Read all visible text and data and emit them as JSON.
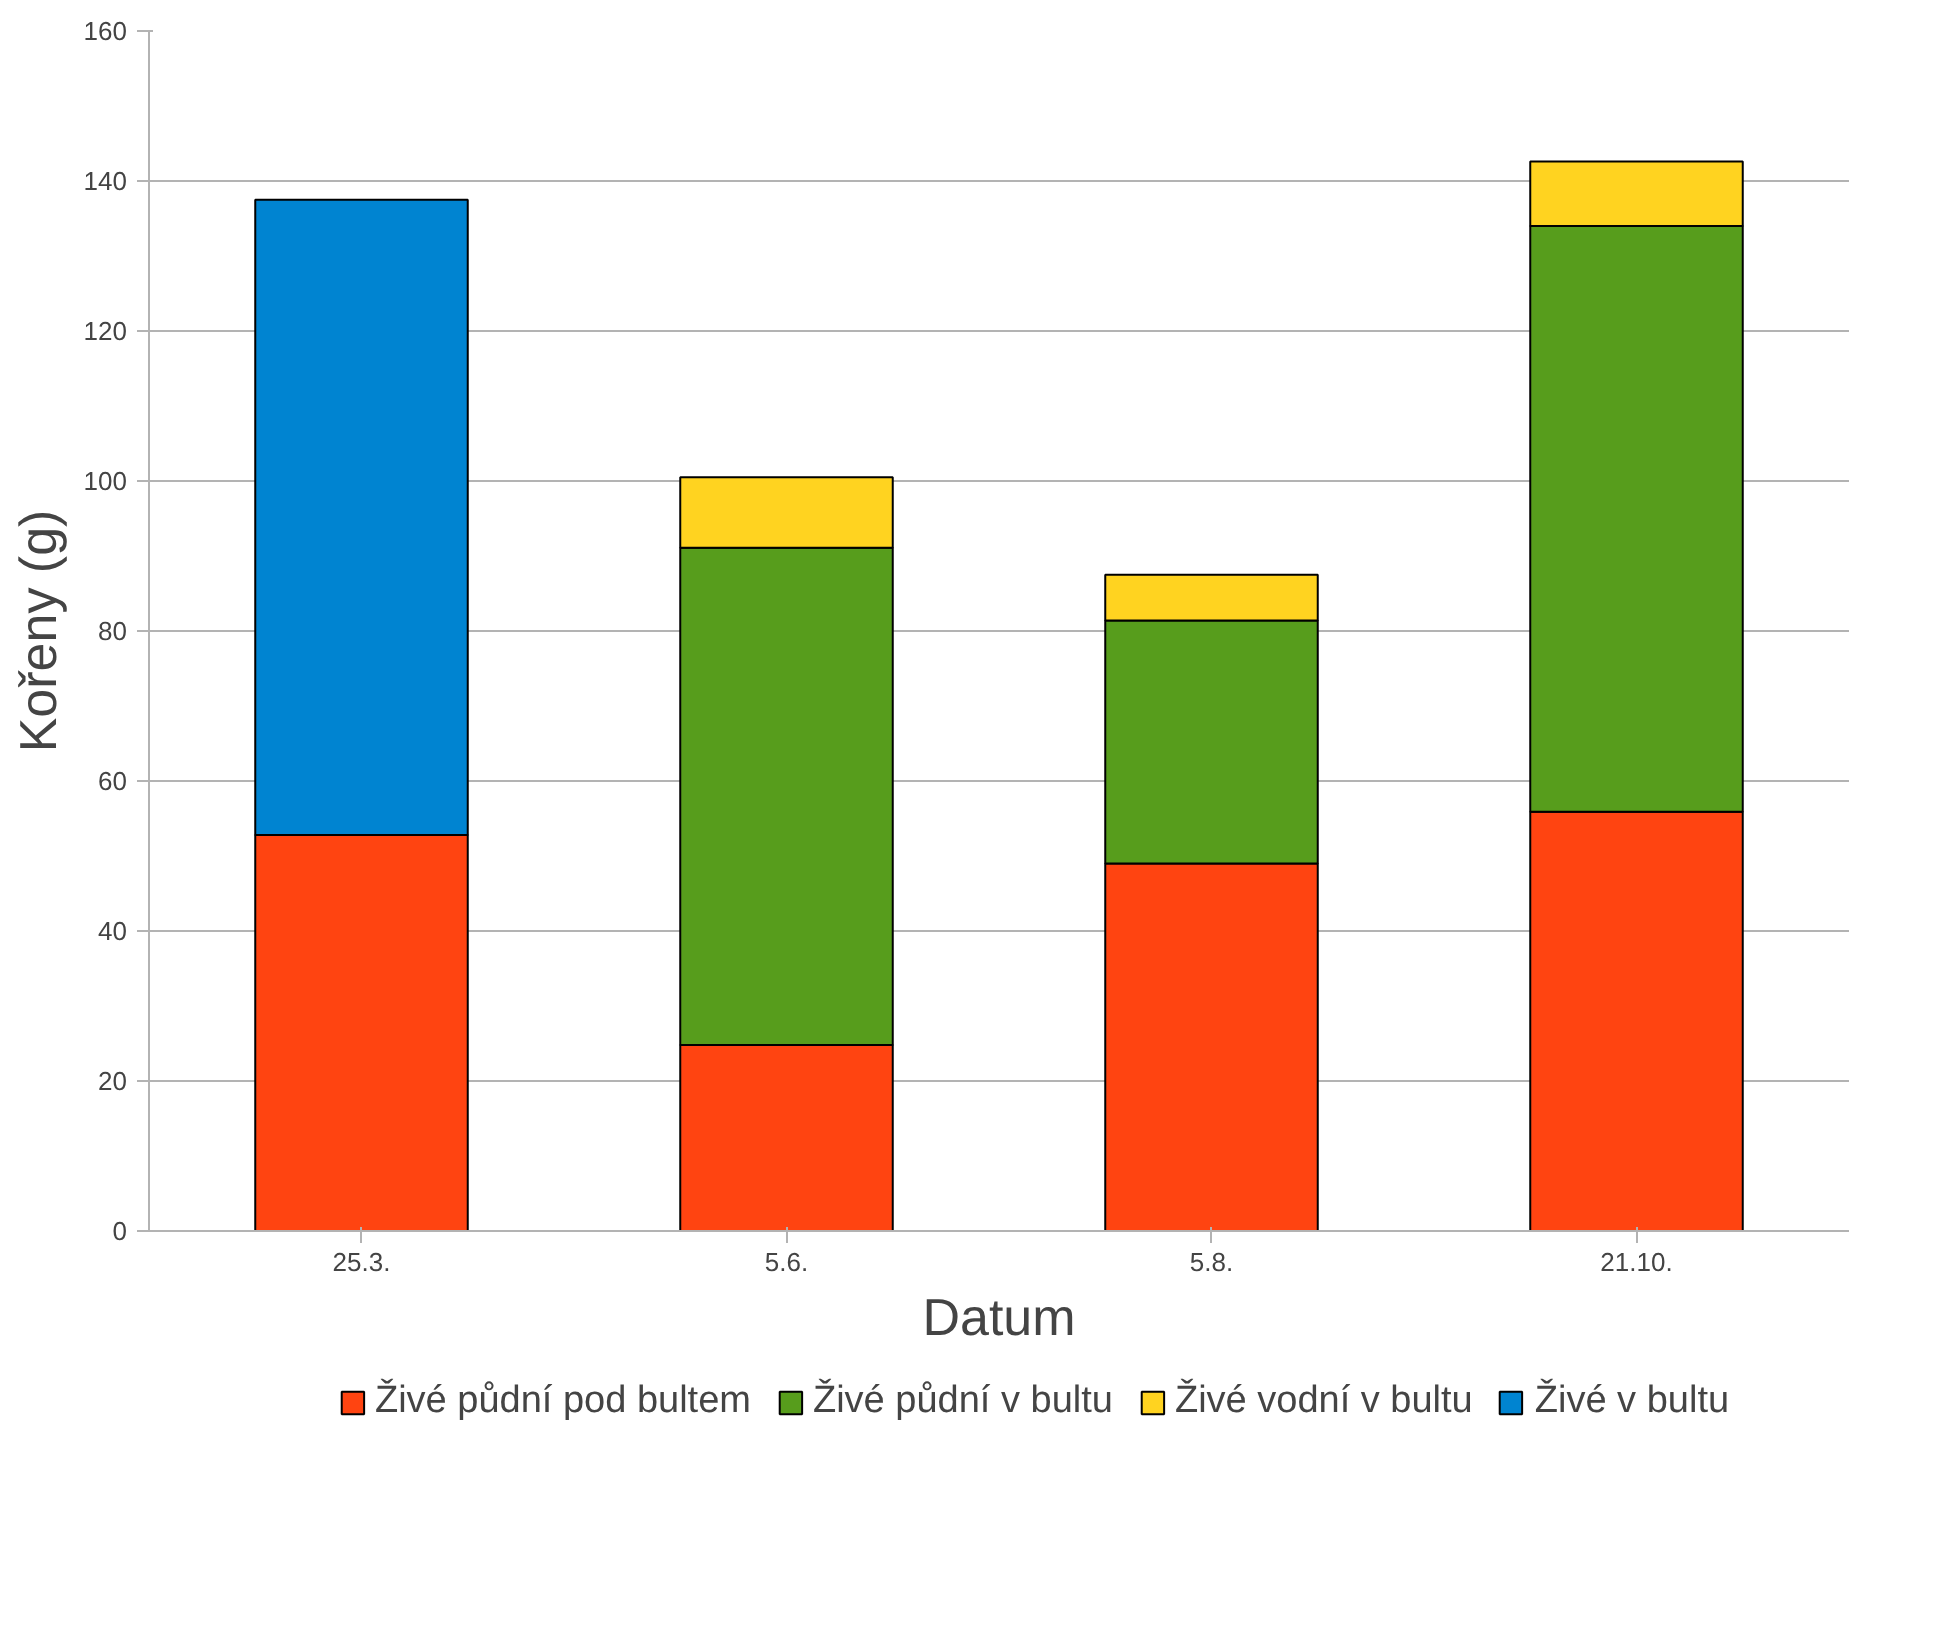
{
  "chart_data": {
    "type": "bar",
    "stacked": true,
    "xlabel": "Datum",
    "ylabel": "Kořeny (g)",
    "categories": [
      "25.3.",
      "5.6.",
      "5.8.",
      "21.10."
    ],
    "series": [
      {
        "name": "Živé půdní pod bultem",
        "color": "#ff4411",
        "values": [
          52.8,
          24.8,
          49.0,
          55.9
        ]
      },
      {
        "name": "Živé půdní v bultu",
        "color": "#579d1c",
        "values": [
          null,
          66.3,
          32.4,
          78.1
        ]
      },
      {
        "name": "Živé vodní v bultu",
        "color": "#ffd320",
        "values": [
          null,
          9.4,
          6.1,
          8.6
        ]
      },
      {
        "name": "Živé v bultu",
        "color": "#0084d1",
        "values": [
          84.7,
          null,
          null,
          null
        ]
      }
    ],
    "ylim": [
      0,
      160
    ],
    "yticks": [
      0,
      20,
      40,
      60,
      80,
      100,
      120,
      140,
      160
    ],
    "grid": "y",
    "legend": "bottom"
  }
}
